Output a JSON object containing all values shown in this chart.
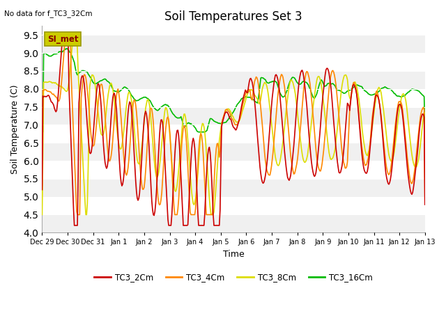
{
  "title": "Soil Temperatures Set 3",
  "top_left_note": "No data for f_TC3_32Cm",
  "xlabel": "Time",
  "ylabel": "Soil Temperature (C)",
  "ylim": [
    4.0,
    9.75
  ],
  "yticks": [
    4.0,
    4.5,
    5.0,
    5.5,
    6.0,
    6.5,
    7.0,
    7.5,
    8.0,
    8.5,
    9.0,
    9.5
  ],
  "bg_color": "#ffffff",
  "plot_bg_color": "#ffffff",
  "legend_label": "SI_met",
  "legend_box_facecolor": "#cccc00",
  "legend_box_edgecolor": "#999900",
  "legend_box_text_color": "#880000",
  "series": {
    "TC3_2Cm": {
      "color": "#cc0000",
      "linewidth": 1.2
    },
    "TC3_4Cm": {
      "color": "#ff8800",
      "linewidth": 1.2
    },
    "TC3_8Cm": {
      "color": "#dddd00",
      "linewidth": 1.2
    },
    "TC3_16Cm": {
      "color": "#00bb00",
      "linewidth": 1.2
    }
  },
  "xtick_labels": [
    "Dec 29",
    "Dec 30",
    "Dec 31",
    "Jan 1",
    "Jan 2",
    "Jan 3",
    "Jan 4",
    "Jan 5",
    "Jan 6",
    "Jan 7",
    "Jan 8",
    "Jan 9",
    "Jan 10",
    "Jan 11",
    "Jan 12",
    "Jan 13"
  ],
  "stripe_colors": [
    "#f0f0f0",
    "#ffffff"
  ],
  "n_points": 500
}
